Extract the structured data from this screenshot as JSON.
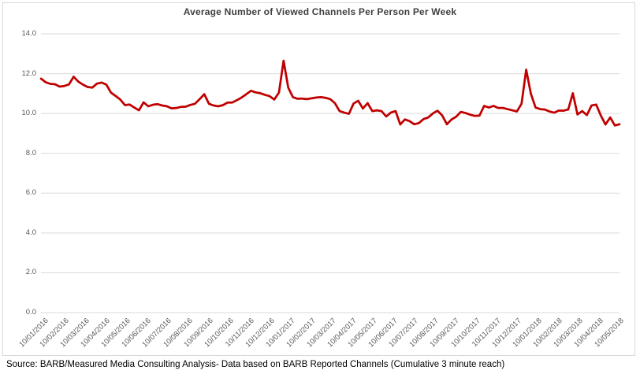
{
  "source": "Source:  BARB/Measured Media Consulting Analysis- Data based on BARB Reported Channels (Cumulative 3 minute reach)",
  "colors": {
    "line": "#C00000",
    "gridline": "#D9D9D9",
    "frame_border": "#D9D9D9",
    "title_text": "#404040",
    "tick_text": "#595959",
    "source_text": "#000000",
    "background": "#FFFFFF"
  },
  "chart_data": {
    "type": "line",
    "title": "Average Number of Viewed Channels Per Person Per Week",
    "xlabel": "",
    "ylabel": "",
    "ylim": [
      0,
      14
    ],
    "y_tick_step": 2,
    "y_tick_labels": [
      "0.0",
      "2.0",
      "4.0",
      "6.0",
      "8.0",
      "10.0",
      "12.0",
      "14.0"
    ],
    "grid": "horizontal",
    "legend_position": "none",
    "x_tick_labels": [
      "10/01/2016",
      "10/02/2016",
      "10/03/2016",
      "10/04/2016",
      "10/05/2016",
      "10/06/2016",
      "10/07/2016",
      "10/08/2016",
      "10/09/2016",
      "10/10/2016",
      "10/11/2016",
      "10/12/2016",
      "10/01/2017",
      "10/02/2017",
      "10/03/2017",
      "10/04/2017",
      "10/05/2017",
      "10/06/2017",
      "10/07/2017",
      "10/08/2017",
      "10/09/2017",
      "10/10/2017",
      "10/11/2017",
      "10/12/2017",
      "10/01/2018",
      "10/02/2018",
      "10/03/2018",
      "10/04/2018",
      "10/05/2018"
    ],
    "x_unit": "weekly data points, labels monthly",
    "series": [
      {
        "name": "Average number of viewed channels per person per week",
        "color": "#C00000",
        "values": [
          11.75,
          11.57,
          11.49,
          11.47,
          11.35,
          11.38,
          11.46,
          11.85,
          11.6,
          11.45,
          11.33,
          11.3,
          11.5,
          11.55,
          11.45,
          11.05,
          10.88,
          10.7,
          10.42,
          10.45,
          10.3,
          10.16,
          10.56,
          10.36,
          10.44,
          10.47,
          10.4,
          10.36,
          10.26,
          10.28,
          10.33,
          10.34,
          10.43,
          10.49,
          10.72,
          10.97,
          10.49,
          10.4,
          10.36,
          10.42,
          10.55,
          10.55,
          10.67,
          10.8,
          10.97,
          11.14,
          11.06,
          11.02,
          10.94,
          10.87,
          10.7,
          11.05,
          12.65,
          11.3,
          10.82,
          10.74,
          10.75,
          10.72,
          10.76,
          10.8,
          10.82,
          10.79,
          10.72,
          10.52,
          10.12,
          10.04,
          9.98,
          10.5,
          10.64,
          10.25,
          10.52,
          10.12,
          10.16,
          10.12,
          9.85,
          10.05,
          10.12,
          9.45,
          9.7,
          9.62,
          9.46,
          9.52,
          9.72,
          9.8,
          10.0,
          10.14,
          9.9,
          9.46,
          9.7,
          9.84,
          10.08,
          10.02,
          9.94,
          9.88,
          9.9,
          10.38,
          10.3,
          10.38,
          10.28,
          10.28,
          10.22,
          10.16,
          10.1,
          10.49,
          12.2,
          11.0,
          10.3,
          10.22,
          10.2,
          10.1,
          10.04,
          10.15,
          10.14,
          10.2,
          11.02,
          9.95,
          10.12,
          9.92,
          10.4,
          10.45,
          9.9,
          9.45,
          9.8,
          9.4,
          9.46
        ]
      }
    ]
  }
}
